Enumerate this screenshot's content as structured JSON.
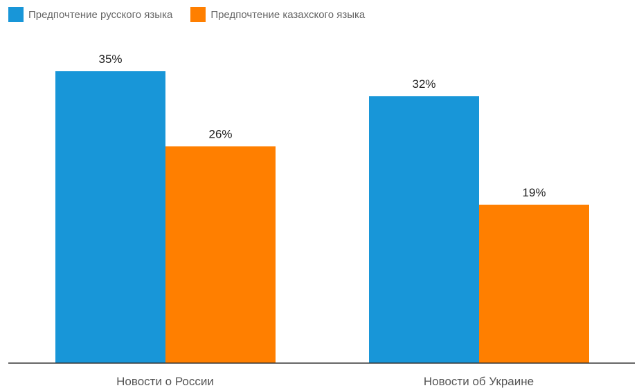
{
  "chart_data": {
    "type": "bar",
    "categories": [
      "Новости о России",
      "Новости об Украине"
    ],
    "series": [
      {
        "name": "Предпочтение русского языка",
        "values": [
          35,
          32
        ],
        "color": "#1896d8"
      },
      {
        "name": "Предпочтение казахского языка",
        "values": [
          26,
          19
        ],
        "color": "#ff7f00"
      }
    ],
    "value_suffix": "%",
    "ylim": [
      0,
      35
    ],
    "grid": false,
    "legend_position": "top-left"
  }
}
